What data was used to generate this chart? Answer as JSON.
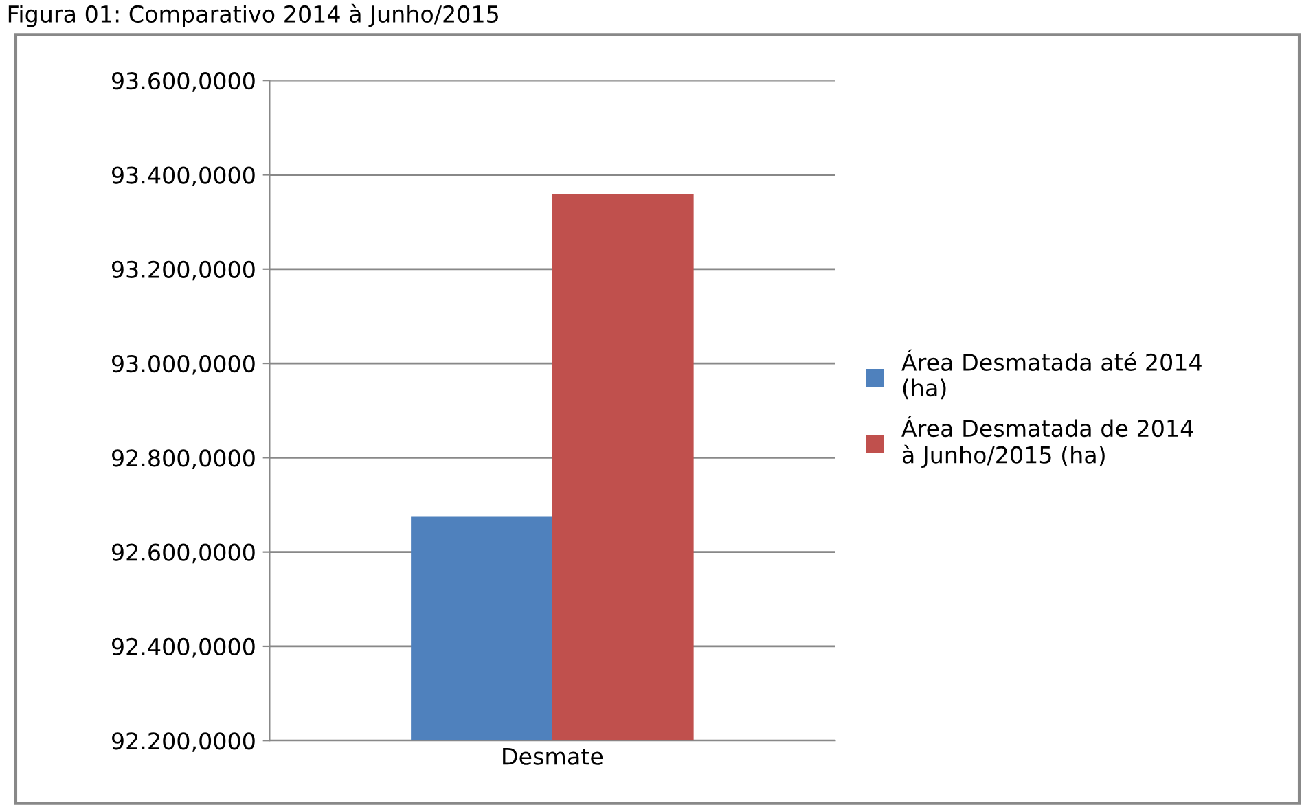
{
  "chart_data": {
    "type": "bar",
    "title": "Figura 01: Comparativo 2014 à Junho/2015",
    "categories": [
      "Desmate"
    ],
    "series": [
      {
        "name": "Área Desmatada até 2014\n(ha)",
        "color": "#4f81bd",
        "values": [
          92676
        ]
      },
      {
        "name": "Área Desmatada de 2014\nà Junho/2015 (ha)",
        "color": "#c0504d",
        "values": [
          93360
        ]
      }
    ],
    "ylim": [
      92200,
      93600
    ],
    "yticks": [
      {
        "value": 92200,
        "label": "92.200,0000"
      },
      {
        "value": 92400,
        "label": "92.400,0000"
      },
      {
        "value": 92600,
        "label": "92.600,0000"
      },
      {
        "value": 92800,
        "label": "92.800,0000"
      },
      {
        "value": 93000,
        "label": "93.000,0000"
      },
      {
        "value": 93200,
        "label": "93.200,0000"
      },
      {
        "value": 93400,
        "label": "93.400,0000"
      },
      {
        "value": 93600,
        "label": "93.600,0000"
      }
    ],
    "grid": "y",
    "legend": "right"
  }
}
